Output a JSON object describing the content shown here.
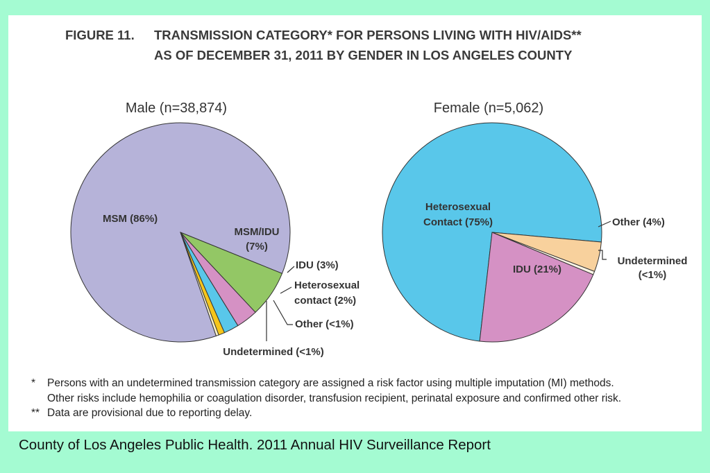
{
  "figure": {
    "label": "FIGURE 11.",
    "title_line1": "TRANSMISSION CATEGORY* FOR PERSONS LIVING WITH HIV/AIDS**",
    "title_line2": "AS OF DECEMBER 31, 2011 BY GENDER IN LOS ANGELES COUNTY"
  },
  "chart_data": [
    {
      "type": "pie",
      "title": "Male (n=38,874)",
      "slices": [
        {
          "label": "MSM (86%)",
          "value": 86.4,
          "color": "#b6b3d9"
        },
        {
          "label": "MSM/IDU (7%)",
          "value": 6.9,
          "color": "#93c765"
        },
        {
          "label": "IDU (3%)",
          "value": 3.2,
          "color": "#d591c4"
        },
        {
          "label": "Heterosexual contact (2%)",
          "value": 2.2,
          "color": "#59c7ea"
        },
        {
          "label": "Other (<1%)",
          "value": 0.9,
          "color": "#f5c51b"
        },
        {
          "label": "Undetermined (<1%)",
          "value": 0.4,
          "color": "#f8f0c8"
        }
      ]
    },
    {
      "type": "pie",
      "title": "Female (n=5,062)",
      "slices": [
        {
          "label": "Heterosexual Contact (75%)",
          "value": 74.6,
          "color": "#59c7ea"
        },
        {
          "label": "Other (4%)",
          "value": 4.4,
          "color": "#f8d19d"
        },
        {
          "label": "Undetermined (<1%)",
          "value": 0.5,
          "color": "#fdf5e6"
        },
        {
          "label": "IDU (21%)",
          "value": 20.5,
          "color": "#d591c4"
        }
      ]
    }
  ],
  "labels": {
    "male": {
      "msm": "MSM (86%)",
      "msm_idu_1": "MSM/IDU",
      "msm_idu_2": "(7%)",
      "idu": "IDU (3%)",
      "het_1": "Heterosexual",
      "het_2": "contact  (2%)",
      "other": "Other (<1%)",
      "undet": "Undetermined (<1%)"
    },
    "female": {
      "het_1": "Heterosexual",
      "het_2": "Contact (75%)",
      "idu": "IDU (21%)",
      "other": "Other (4%)",
      "undet_1": "Undetermined",
      "undet_2": "(<1%)"
    }
  },
  "footnotes": {
    "n1_mark": "*",
    "n1_line1": "Persons with an undetermined transmission category are assigned a risk factor using multiple imputation (MI) methods.",
    "n1_line2": "Other risks include hemophilia or coagulation disorder, transfusion recipient, perinatal exposure and confirmed other risk.",
    "n2_mark": "**",
    "n2_text": "Data are provisional due to reporting delay."
  },
  "source": "County of Los Angeles Public Health. 2011 Annual HIV Surveillance Report"
}
